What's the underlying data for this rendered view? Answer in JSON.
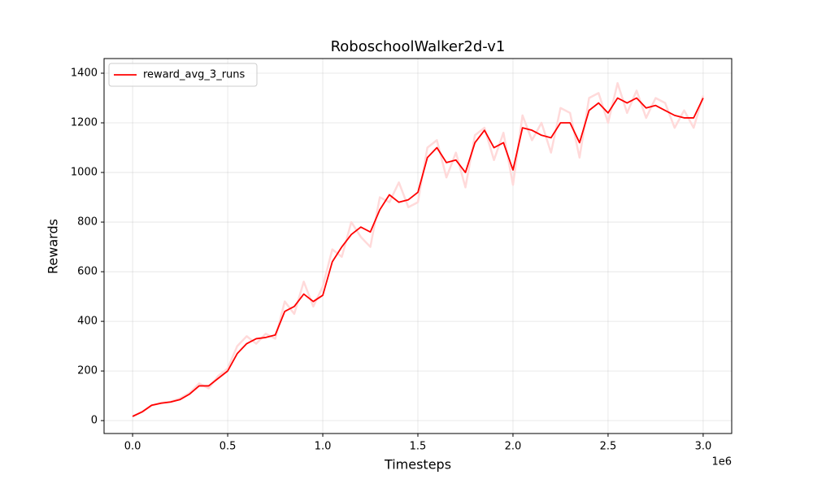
{
  "chart_data": {
    "type": "line",
    "title": "RoboschoolWalker2d-v1",
    "xlabel": "Timesteps",
    "ylabel": "Rewards",
    "x_offset_label": "1e6",
    "x": [
      0.0,
      0.05,
      0.1,
      0.15,
      0.2,
      0.25,
      0.3,
      0.35,
      0.4,
      0.45,
      0.5,
      0.55,
      0.6,
      0.65,
      0.7,
      0.75,
      0.8,
      0.85,
      0.9,
      0.95,
      1.0,
      1.05,
      1.1,
      1.15,
      1.2,
      1.25,
      1.3,
      1.35,
      1.4,
      1.45,
      1.5,
      1.55,
      1.6,
      1.65,
      1.7,
      1.75,
      1.8,
      1.85,
      1.9,
      1.95,
      2.0,
      2.05,
      2.1,
      2.15,
      2.2,
      2.25,
      2.3,
      2.35,
      2.4,
      2.45,
      2.5,
      2.55,
      2.6,
      2.65,
      2.7,
      2.75,
      2.8,
      2.85,
      2.9,
      2.95,
      3.0
    ],
    "series": [
      {
        "color": "#ffdada",
        "values": [
          17,
          36,
          60,
          72,
          76,
          90,
          112,
          150,
          130,
          180,
          210,
          300,
          340,
          310,
          350,
          330,
          480,
          430,
          560,
          460,
          540,
          690,
          660,
          800,
          740,
          700,
          900,
          880,
          960,
          860,
          880,
          1100,
          1130,
          980,
          1080,
          940,
          1150,
          1180,
          1050,
          1160,
          950,
          1230,
          1130,
          1200,
          1080,
          1260,
          1240,
          1060,
          1300,
          1320,
          1200,
          1360,
          1240,
          1330,
          1220,
          1300,
          1280,
          1180,
          1250,
          1180,
          1310
        ]
      },
      {
        "name": "reward_avg_3_runs",
        "color": "#ff0000",
        "values": [
          17,
          35,
          62,
          70,
          75,
          85,
          107,
          140,
          140,
          170,
          200,
          270,
          310,
          330,
          335,
          345,
          440,
          460,
          510,
          480,
          505,
          640,
          700,
          750,
          780,
          760,
          850,
          910,
          880,
          890,
          920,
          1060,
          1100,
          1040,
          1050,
          1000,
          1120,
          1170,
          1100,
          1120,
          1010,
          1180,
          1170,
          1150,
          1140,
          1200,
          1200,
          1120,
          1250,
          1280,
          1240,
          1300,
          1280,
          1300,
          1260,
          1270,
          1250,
          1230,
          1220,
          1220,
          1300
        ]
      }
    ],
    "xlim": [
      -0.15,
      3.15
    ],
    "ylim": [
      -52,
      1459
    ],
    "xticks": [
      {
        "value": 0,
        "label": "0.0"
      },
      0.5,
      {
        "value": 1,
        "label": "1.0"
      },
      1.5,
      {
        "value": 2,
        "label": "2.0"
      },
      2.5,
      {
        "value": 3,
        "label": "3.0"
      }
    ],
    "yticks": [
      0,
      200,
      400,
      600,
      800,
      1000,
      1200,
      1400
    ],
    "grid": true,
    "legend": "upper left"
  }
}
